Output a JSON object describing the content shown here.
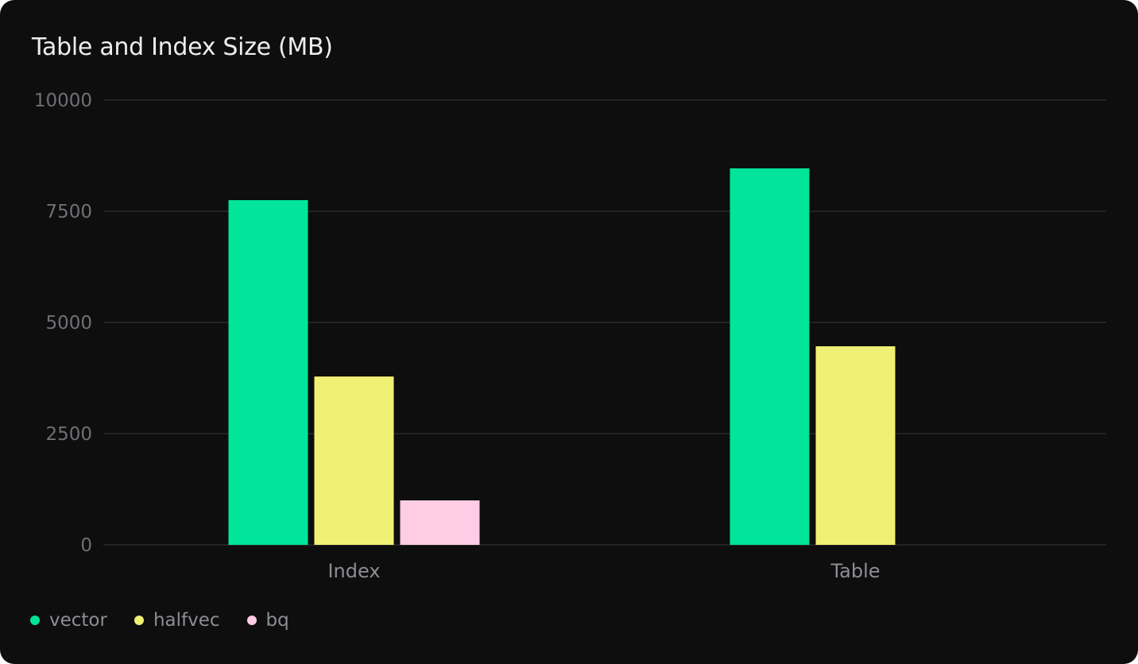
{
  "chart_data": {
    "type": "bar",
    "title": "Table and Index Size (MB)",
    "categories": [
      "Index",
      "Table"
    ],
    "series": [
      {
        "name": "vector",
        "values": [
          7750,
          8465
        ],
        "color": "#00e599"
      },
      {
        "name": "halfvec",
        "values": [
          3785,
          4465
        ],
        "color": "#f0f075"
      },
      {
        "name": "bq",
        "values": [
          1000,
          0
        ],
        "color": "#ffcce5"
      }
    ],
    "ylim": [
      0,
      10000
    ],
    "yticks": [
      "0",
      "2500",
      "5000",
      "7500",
      "10000"
    ],
    "grid": true,
    "legend": "bottom-left"
  }
}
